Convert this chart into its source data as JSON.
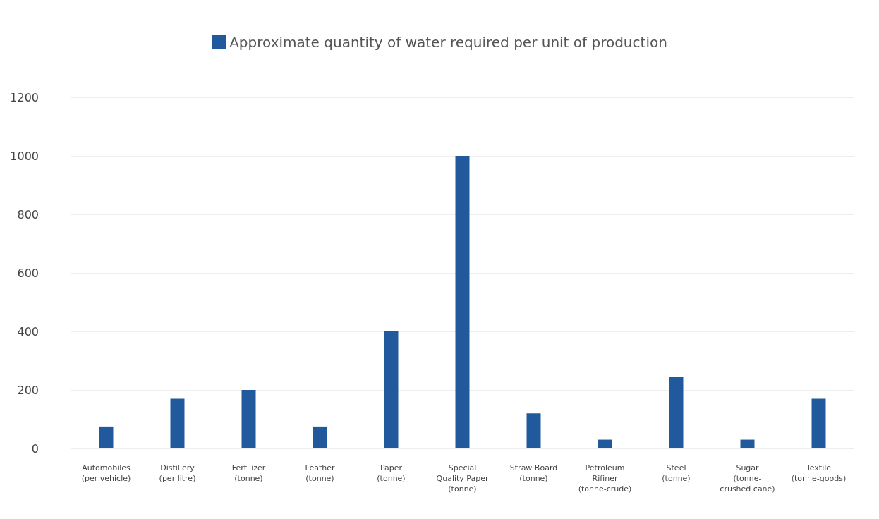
{
  "chart_data": {
    "type": "bar",
    "categories": [
      "Automobiles\n(per vehicle)",
      "Distillery\n(per litre)",
      "Fertilizer\n(tonne)",
      "Leather\n(tonne)",
      "Paper\n(tonne)",
      "Special\nQuality Paper\n(tonne)",
      "Straw Board\n(tonne)",
      "Petroleum\nRifiner\n(tonne-crude)",
      "Steel\n(tonne)",
      "Sugar\n(tonne-\ncrushed cane)",
      "Textile\n(tonne-goods)"
    ],
    "series": [
      {
        "name": "Approximate quantity of water required per unit of production",
        "color": "#215a9c",
        "values": [
          75,
          170,
          200,
          75,
          400,
          1000,
          120,
          30,
          245,
          30,
          170
        ]
      }
    ],
    "ylim": [
      0,
      1200
    ],
    "yticks": [
      0,
      200,
      400,
      600,
      800,
      1000,
      1200
    ],
    "grid": "y",
    "legend": "top"
  }
}
